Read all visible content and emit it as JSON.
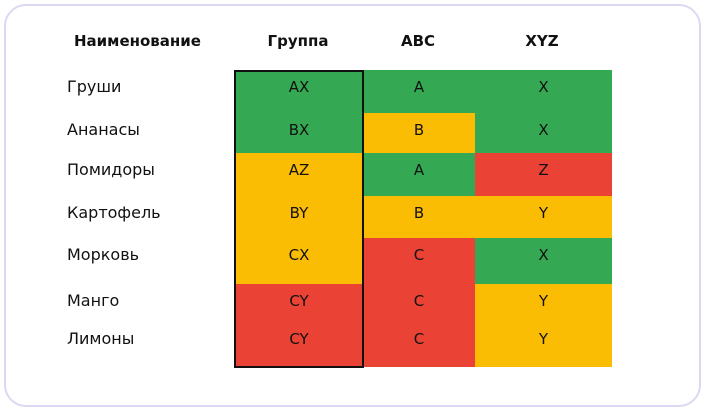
{
  "table": {
    "header": [
      "Наименование",
      "Группа",
      "ABC",
      "XYZ"
    ],
    "rows": [
      [
        "Груши",
        "AX",
        "A",
        "X"
      ],
      [
        "Ананасы",
        "BX",
        "B",
        "X"
      ],
      [
        "Помидоры",
        "AZ",
        "A",
        "Z"
      ],
      [
        "Картофель",
        "BY",
        "B",
        "Y"
      ],
      [
        "Морковь",
        "CX",
        "C",
        "X"
      ],
      [
        "Манго",
        "CY",
        "C",
        "Y"
      ],
      [
        "Лимоны",
        "CY",
        "C",
        "Y"
      ]
    ],
    "colors": [
      [
        null,
        "#34a853",
        "#34a853",
        "#34a853"
      ],
      [
        null,
        "#34a853",
        "#fbbc04",
        "#34a853"
      ],
      [
        null,
        "#fbbc04",
        "#34a853",
        "#ea4335"
      ],
      [
        null,
        "#fbbc04",
        "#fbbc04",
        "#fbbc04"
      ],
      [
        null,
        "#fbbc04",
        "#ea4335",
        "#34a853"
      ],
      [
        null,
        "#ea4335",
        "#ea4335",
        "#fbbc04"
      ],
      [
        null,
        "#ea4335",
        "#ea4335",
        "#fbbc04"
      ]
    ]
  }
}
